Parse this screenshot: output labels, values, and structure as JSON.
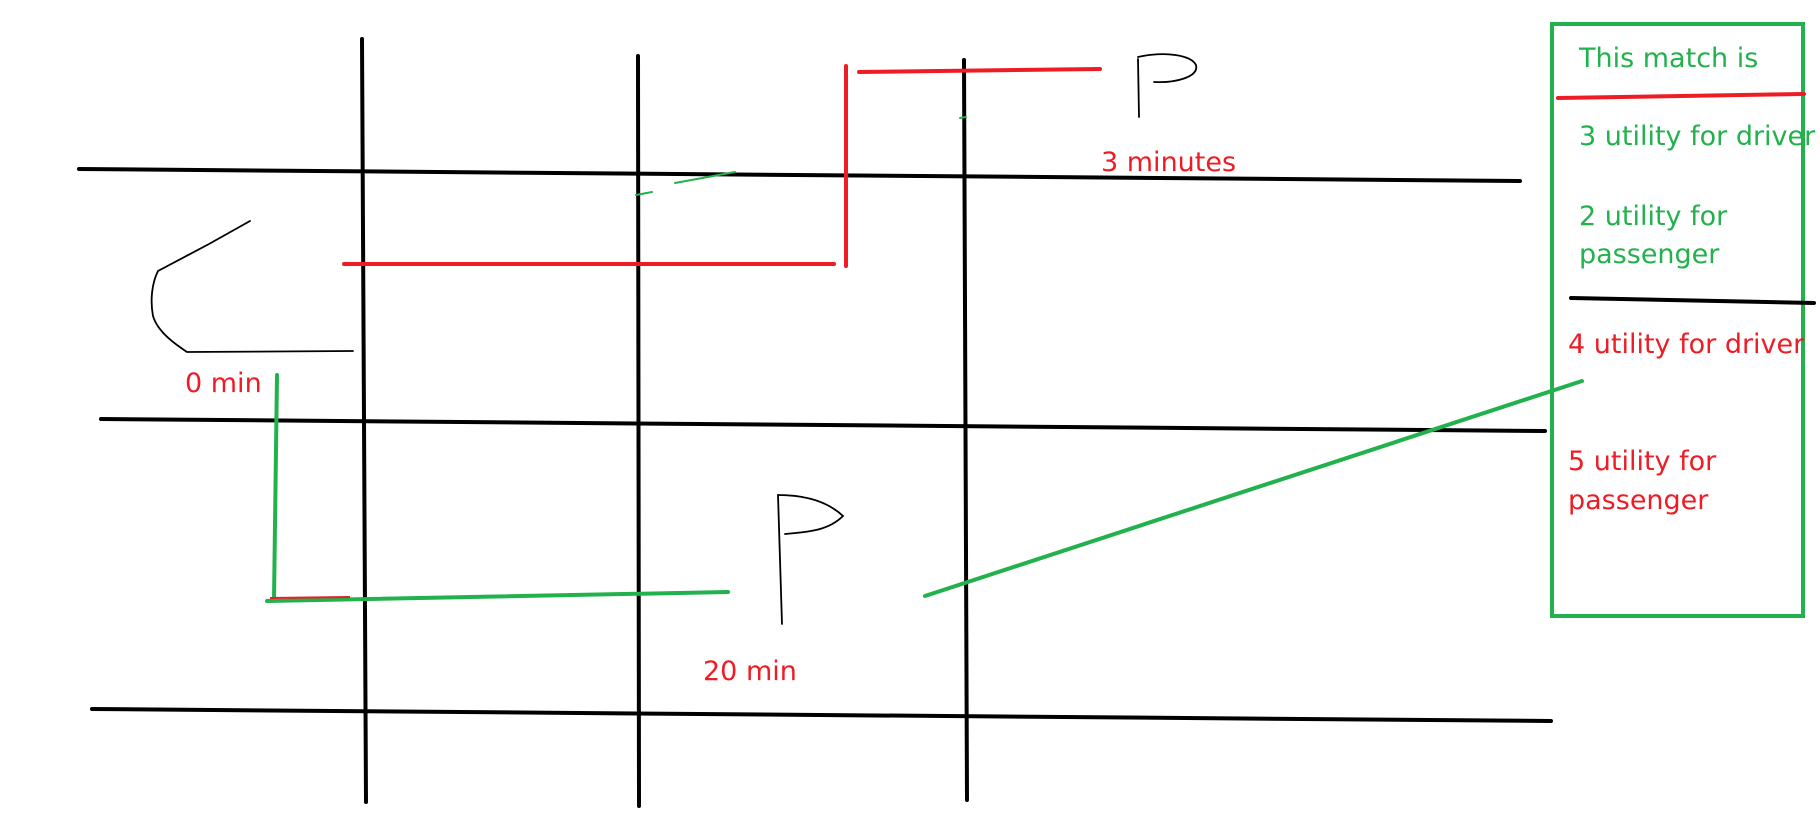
{
  "colors": {
    "grid": "#000000",
    "red": "#ee1c24",
    "green": "#22b14c",
    "sketch": "#000000"
  },
  "labels": {
    "car_time": "0 min",
    "top_flag_time": "3 minutes",
    "bottom_flag_time": "20 min"
  },
  "legend": {
    "title": "This match is",
    "green_driver": "3 utility for driver",
    "green_passenger_line1": "2 utility for",
    "green_passenger_line2": "passenger",
    "red_driver": "4 utility for driver",
    "red_passenger_line1": "5 utility for",
    "red_passenger_line2": "passenger"
  },
  "icons": {
    "car": "car-sketch-icon",
    "top_flag": "flag-icon",
    "bottom_flag": "flag-icon"
  }
}
